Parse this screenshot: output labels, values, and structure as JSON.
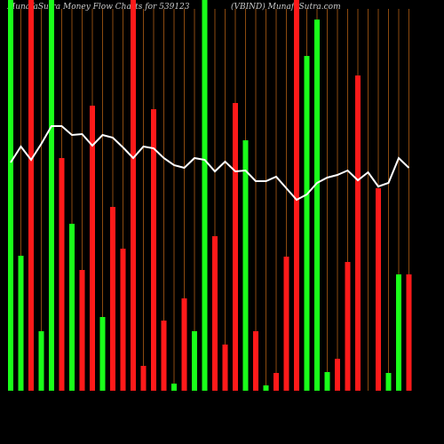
{
  "chart_data": {
    "type": "bar",
    "title": "MunafaSutra  Money Flow  Charts for 539123",
    "subtitle": "(VBIND) MunafaSutra.com",
    "categories": [
      null,
      null,
      null,
      null,
      null,
      null,
      null,
      null,
      null,
      null,
      null,
      null,
      null,
      null,
      null,
      null,
      null,
      null,
      null,
      null,
      null,
      null,
      null,
      null,
      null,
      null,
      null,
      null,
      null,
      null,
      null,
      null,
      null,
      null,
      null,
      null,
      null,
      null,
      null,
      null
    ],
    "values": [
      440,
      152,
      440,
      67,
      440,
      262,
      188,
      136,
      321,
      83,
      207,
      160,
      440,
      28,
      317,
      79,
      8,
      104,
      67,
      440,
      174,
      52,
      324,
      282,
      67,
      6,
      20,
      151,
      440,
      377,
      418,
      21,
      36,
      145,
      355,
      0,
      228,
      20,
      131,
      131
    ],
    "colors": [
      "#1aff1a",
      "#1aff1a",
      "#ff1a1a",
      "#1aff1a",
      "#1aff1a",
      "#ff1a1a",
      "#1aff1a",
      "#ff1a1a",
      "#ff1a1a",
      "#1aff1a",
      "#ff1a1a",
      "#ff1a1a",
      "#ff1a1a",
      "#ff1a1a",
      "#ff1a1a",
      "#ff1a1a",
      "#1aff1a",
      "#ff1a1a",
      "#1aff1a",
      "#1aff1a",
      "#ff1a1a",
      "#ff1a1a",
      "#ff1a1a",
      "#1aff1a",
      "#ff1a1a",
      "#1aff1a",
      "#ff1a1a",
      "#ff1a1a",
      "#ff1a1a",
      "#1aff1a",
      "#1aff1a",
      "#1aff1a",
      "#ff1a1a",
      "#ff1a1a",
      "#ff1a1a",
      "#1aff1a",
      "#ff1a1a",
      "#1aff1a",
      "#1aff1a",
      "#ff1a1a"
    ],
    "line": {
      "color": "#ffffff",
      "values": [
        257,
        275,
        260,
        278,
        298,
        298,
        288,
        289,
        276,
        288,
        285,
        274,
        262,
        275,
        273,
        262,
        254,
        251,
        262,
        260,
        247,
        258,
        247,
        248,
        236,
        236,
        241,
        228,
        215,
        221,
        234,
        240,
        243,
        248,
        237,
        246,
        230,
        234,
        262,
        251
      ]
    },
    "grid_color": "#8b4a0f",
    "ylim": [
      0,
      440
    ]
  }
}
